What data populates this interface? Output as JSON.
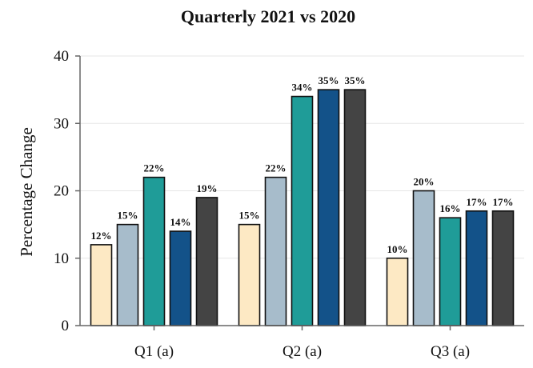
{
  "chart_data": {
    "type": "bar",
    "title": "Quarterly 2021 vs 2020",
    "xlabel": "",
    "ylabel": "Percentage Change",
    "ylim": [
      0,
      40
    ],
    "yticks": [
      0,
      10,
      20,
      30,
      40
    ],
    "grid": true,
    "categories": [
      "Q1 (a)",
      "Q2 (a)",
      "Q3 (a)"
    ],
    "series": [
      {
        "color": "#fde9c4",
        "values": [
          12,
          15,
          10
        ],
        "labels": [
          "12%",
          "15%",
          "10%"
        ]
      },
      {
        "color": "#a7bccb",
        "values": [
          15,
          22,
          20
        ],
        "labels": [
          "15%",
          "22%",
          "20%"
        ]
      },
      {
        "color": "#1f9c98",
        "values": [
          22,
          34,
          16
        ],
        "labels": [
          "22%",
          "34%",
          "16%"
        ]
      },
      {
        "color": "#135289",
        "values": [
          14,
          35,
          17
        ],
        "labels": [
          "14%",
          "35%",
          "17%"
        ]
      },
      {
        "color": "#444444",
        "values": [
          19,
          35,
          17
        ],
        "labels": [
          "19%",
          "35%",
          "17%"
        ]
      }
    ]
  }
}
